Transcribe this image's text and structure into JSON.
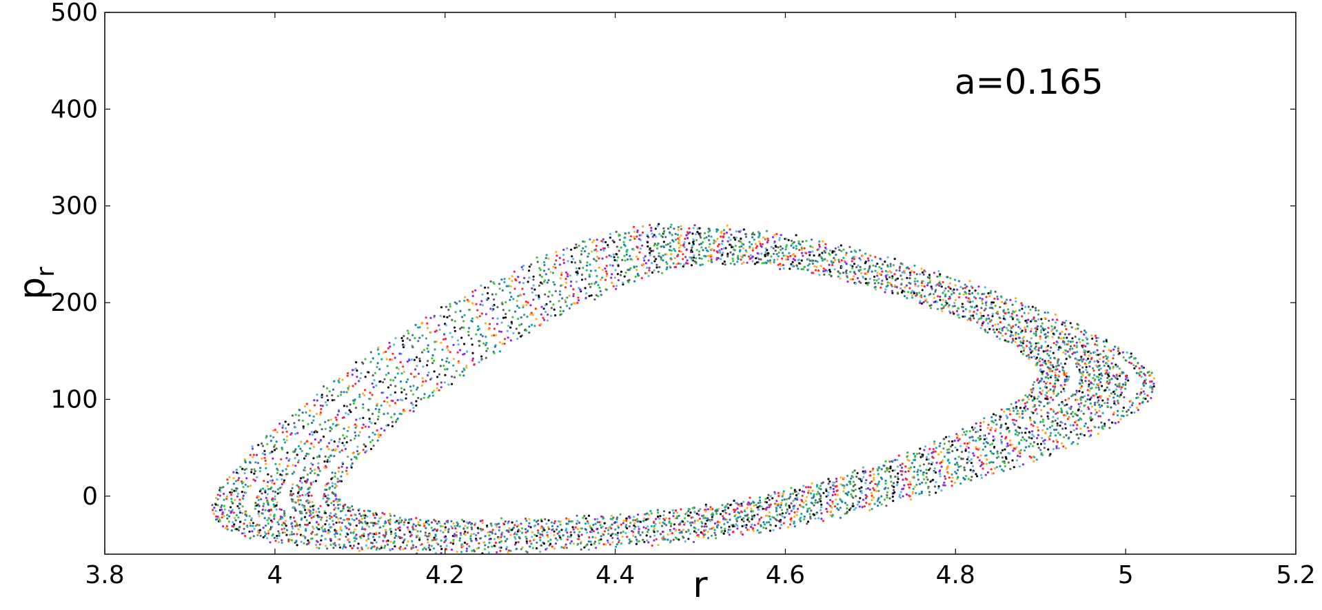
{
  "chart_data": {
    "type": "scatter",
    "title": "",
    "xlabel": "r",
    "ylabel_main": "p",
    "ylabel_sub": "r",
    "annotation": "a=0.165",
    "xlim": [
      3.8,
      5.2
    ],
    "ylim": [
      -60,
      500
    ],
    "xticks": [
      3.8,
      4.0,
      4.2,
      4.4,
      4.6,
      4.8,
      5.0,
      5.2
    ],
    "xtick_labels": [
      "3.8",
      "4",
      "4.2",
      "4.4",
      "4.6",
      "4.8",
      "5",
      "5.2"
    ],
    "yticks": [
      0,
      100,
      200,
      300,
      400,
      500
    ],
    "ytick_labels": [
      "0",
      "100",
      "200",
      "300",
      "400",
      "500"
    ],
    "grid": false,
    "legend": "none",
    "colors": [
      "#000000",
      "#5bb8e6",
      "#8a2be2",
      "#ff2a2a",
      "#ffb020",
      "#1fa89c",
      "#2a7ab0",
      "#3ec43e",
      "#606060"
    ],
    "series": [
      {
        "values": [
          [
            4.07,
            0.2
          ],
          [
            4.55,
            -5.8
          ],
          [
            4.9,
            130.1
          ],
          [
            4.48,
            238.6
          ]
        ]
      },
      {
        "values": [
          [
            4.06,
            -1.5
          ],
          [
            4.55,
            -8.7
          ],
          [
            4.91,
            129.2
          ],
          [
            4.48,
            242.0
          ]
        ]
      },
      {
        "values": [
          [
            4.04,
            -3.3
          ],
          [
            4.55,
            -11.6
          ],
          [
            4.92,
            128.4
          ],
          [
            4.47,
            245.4
          ]
        ]
      },
      {
        "values": [
          [
            4.03,
            -5.0
          ],
          [
            4.55,
            -14.5
          ],
          [
            4.93,
            127.5
          ],
          [
            4.47,
            248.8
          ]
        ]
      },
      {
        "values": [
          [
            4.02,
            -6.8
          ],
          [
            4.55,
            -17.4
          ],
          [
            4.95,
            126.7
          ],
          [
            4.46,
            252.2
          ]
        ]
      },
      {
        "values": [
          [
            4.0,
            -8.5
          ],
          [
            4.55,
            -20.3
          ],
          [
            4.96,
            125.8
          ],
          [
            4.46,
            255.6
          ]
        ]
      },
      {
        "values": [
          [
            3.99,
            -10.3
          ],
          [
            4.55,
            -23.2
          ],
          [
            4.97,
            125.0
          ],
          [
            4.45,
            259.0
          ]
        ]
      },
      {
        "values": [
          [
            3.98,
            -12.0
          ],
          [
            4.55,
            -26.1
          ],
          [
            4.98,
            124.1
          ],
          [
            4.45,
            262.4
          ]
        ]
      },
      {
        "values": [
          [
            3.96,
            -13.8
          ],
          [
            4.55,
            -29.0
          ],
          [
            4.99,
            123.3
          ],
          [
            4.44,
            265.8
          ]
        ]
      },
      {
        "values": [
          [
            3.95,
            -15.5
          ],
          [
            4.55,
            -31.9
          ],
          [
            5.0,
            122.4
          ],
          [
            4.44,
            269.2
          ]
        ]
      },
      {
        "values": [
          [
            3.94,
            -17.3
          ],
          [
            4.55,
            -34.8
          ],
          [
            5.02,
            121.6
          ],
          [
            4.43,
            272.6
          ]
        ]
      },
      {
        "values": [
          [
            3.93,
            -19.0
          ],
          [
            4.55,
            -37.7
          ],
          [
            5.03,
            120.7
          ],
          [
            4.43,
            276.0
          ]
        ]
      }
    ]
  }
}
